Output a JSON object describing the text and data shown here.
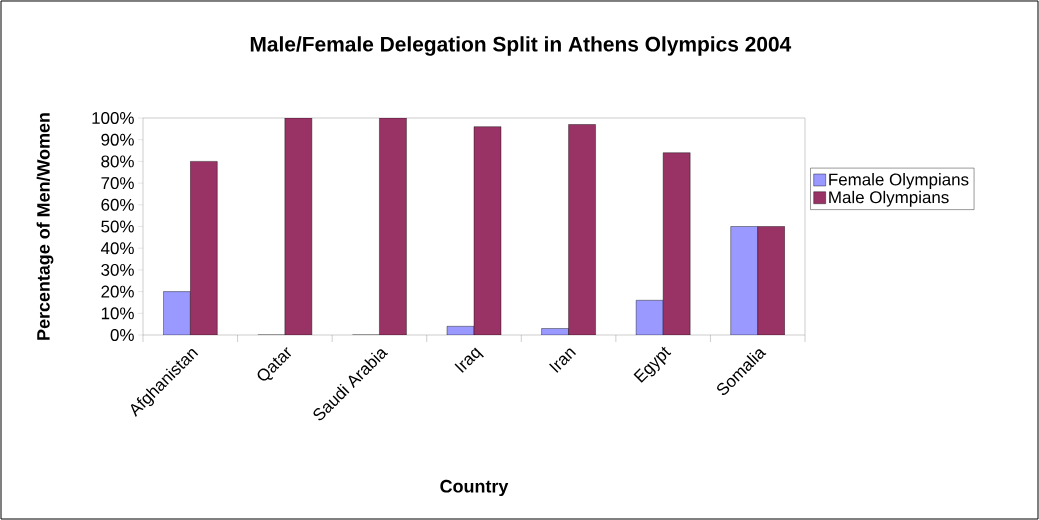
{
  "chart_data": {
    "type": "bar",
    "title": "Male/Female Delegation Split in Athens Olympics 2004",
    "xlabel": "Country",
    "ylabel": "Percentage of Men/Women",
    "categories": [
      "Afghanistan",
      "Qatar",
      "Saudi Arabia",
      "Iraq",
      "Iran",
      "Egypt",
      "Somalia"
    ],
    "series": [
      {
        "name": "Female Olympians",
        "color": "#9999ff",
        "values": [
          20,
          0,
          0,
          4,
          3,
          16,
          50
        ]
      },
      {
        "name": "Male Olympians",
        "color": "#993366",
        "values": [
          80,
          100,
          100,
          96,
          97,
          84,
          50
        ]
      }
    ],
    "ylim": [
      0,
      100
    ],
    "yticks": [
      {
        "value": 0,
        "label": "0%"
      },
      {
        "value": 10,
        "label": "10%"
      },
      {
        "value": 20,
        "label": "20%"
      },
      {
        "value": 30,
        "label": "30%"
      },
      {
        "value": 40,
        "label": "40%"
      },
      {
        "value": 50,
        "label": "50%"
      },
      {
        "value": 60,
        "label": "60%"
      },
      {
        "value": 70,
        "label": "70%"
      },
      {
        "value": 80,
        "label": "80%"
      },
      {
        "value": 90,
        "label": "90%"
      },
      {
        "value": 100,
        "label": "100%"
      }
    ],
    "grid": false,
    "legend": "right"
  }
}
